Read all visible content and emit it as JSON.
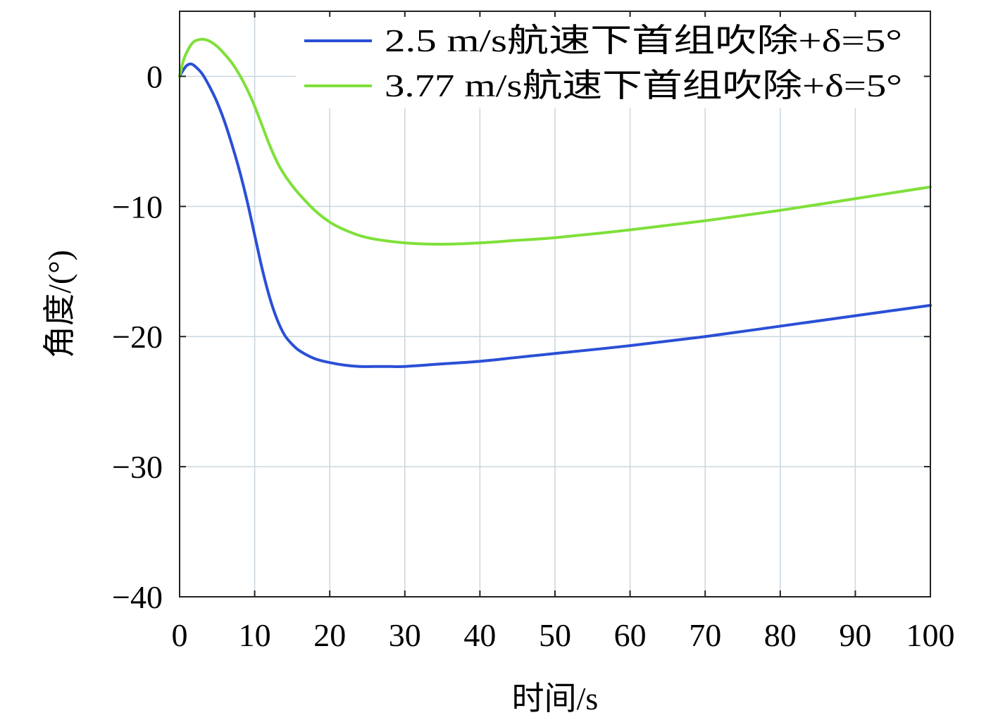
{
  "chart_data": {
    "type": "line",
    "title": "",
    "xlabel": "时间/s",
    "ylabel": "角度/(°)",
    "xlim": [
      0,
      100
    ],
    "ylim": [
      -40,
      5
    ],
    "xticks": [
      0,
      10,
      20,
      30,
      40,
      50,
      60,
      70,
      80,
      90,
      100
    ],
    "yticks": [
      0,
      -10,
      -20,
      -30,
      -40
    ],
    "xtick_labels": [
      "0",
      "10",
      "20",
      "30",
      "40",
      "50",
      "60",
      "70",
      "80",
      "90",
      "100"
    ],
    "ytick_labels": [
      "0",
      "−10",
      "−20",
      "−30",
      "−40"
    ],
    "grid": true,
    "legend_position": "top-right",
    "series": [
      {
        "name": "2.5 m/s航速下首组吹除+δ=5°",
        "color": "#2a4fd6",
        "x": [
          0,
          0.5,
          1,
          1.5,
          2,
          3,
          4,
          5,
          6,
          7,
          8,
          9,
          10,
          11,
          12,
          13,
          14,
          15,
          16,
          18,
          20,
          22,
          24,
          26,
          28,
          30,
          35,
          40,
          45,
          50,
          60,
          70,
          80,
          90,
          100
        ],
        "y": [
          0,
          0.5,
          0.85,
          0.95,
          0.8,
          0.2,
          -0.8,
          -2.0,
          -3.5,
          -5.3,
          -7.3,
          -9.6,
          -12.2,
          -14.8,
          -17.0,
          -18.7,
          -19.9,
          -20.6,
          -21.1,
          -21.7,
          -22.0,
          -22.2,
          -22.3,
          -22.3,
          -22.3,
          -22.3,
          -22.1,
          -21.9,
          -21.6,
          -21.3,
          -20.7,
          -20.0,
          -19.2,
          -18.4,
          -17.6
        ]
      },
      {
        "name": "3.77 m/s航速下首组吹除+δ=5°",
        "color": "#7fe03a",
        "x": [
          0,
          0.5,
          1,
          1.5,
          2,
          3,
          4,
          5,
          6,
          7,
          8,
          9,
          10,
          11,
          12,
          13,
          14,
          15,
          16,
          18,
          20,
          22,
          25,
          30,
          35,
          40,
          45,
          50,
          60,
          70,
          80,
          90,
          100
        ],
        "y": [
          0,
          1.2,
          1.9,
          2.4,
          2.7,
          2.85,
          2.7,
          2.3,
          1.7,
          1.0,
          0.1,
          -1.0,
          -2.3,
          -3.8,
          -5.3,
          -6.6,
          -7.6,
          -8.4,
          -9.1,
          -10.3,
          -11.2,
          -11.8,
          -12.4,
          -12.8,
          -12.9,
          -12.8,
          -12.6,
          -12.4,
          -11.8,
          -11.1,
          -10.3,
          -9.4,
          -8.5
        ]
      }
    ]
  }
}
